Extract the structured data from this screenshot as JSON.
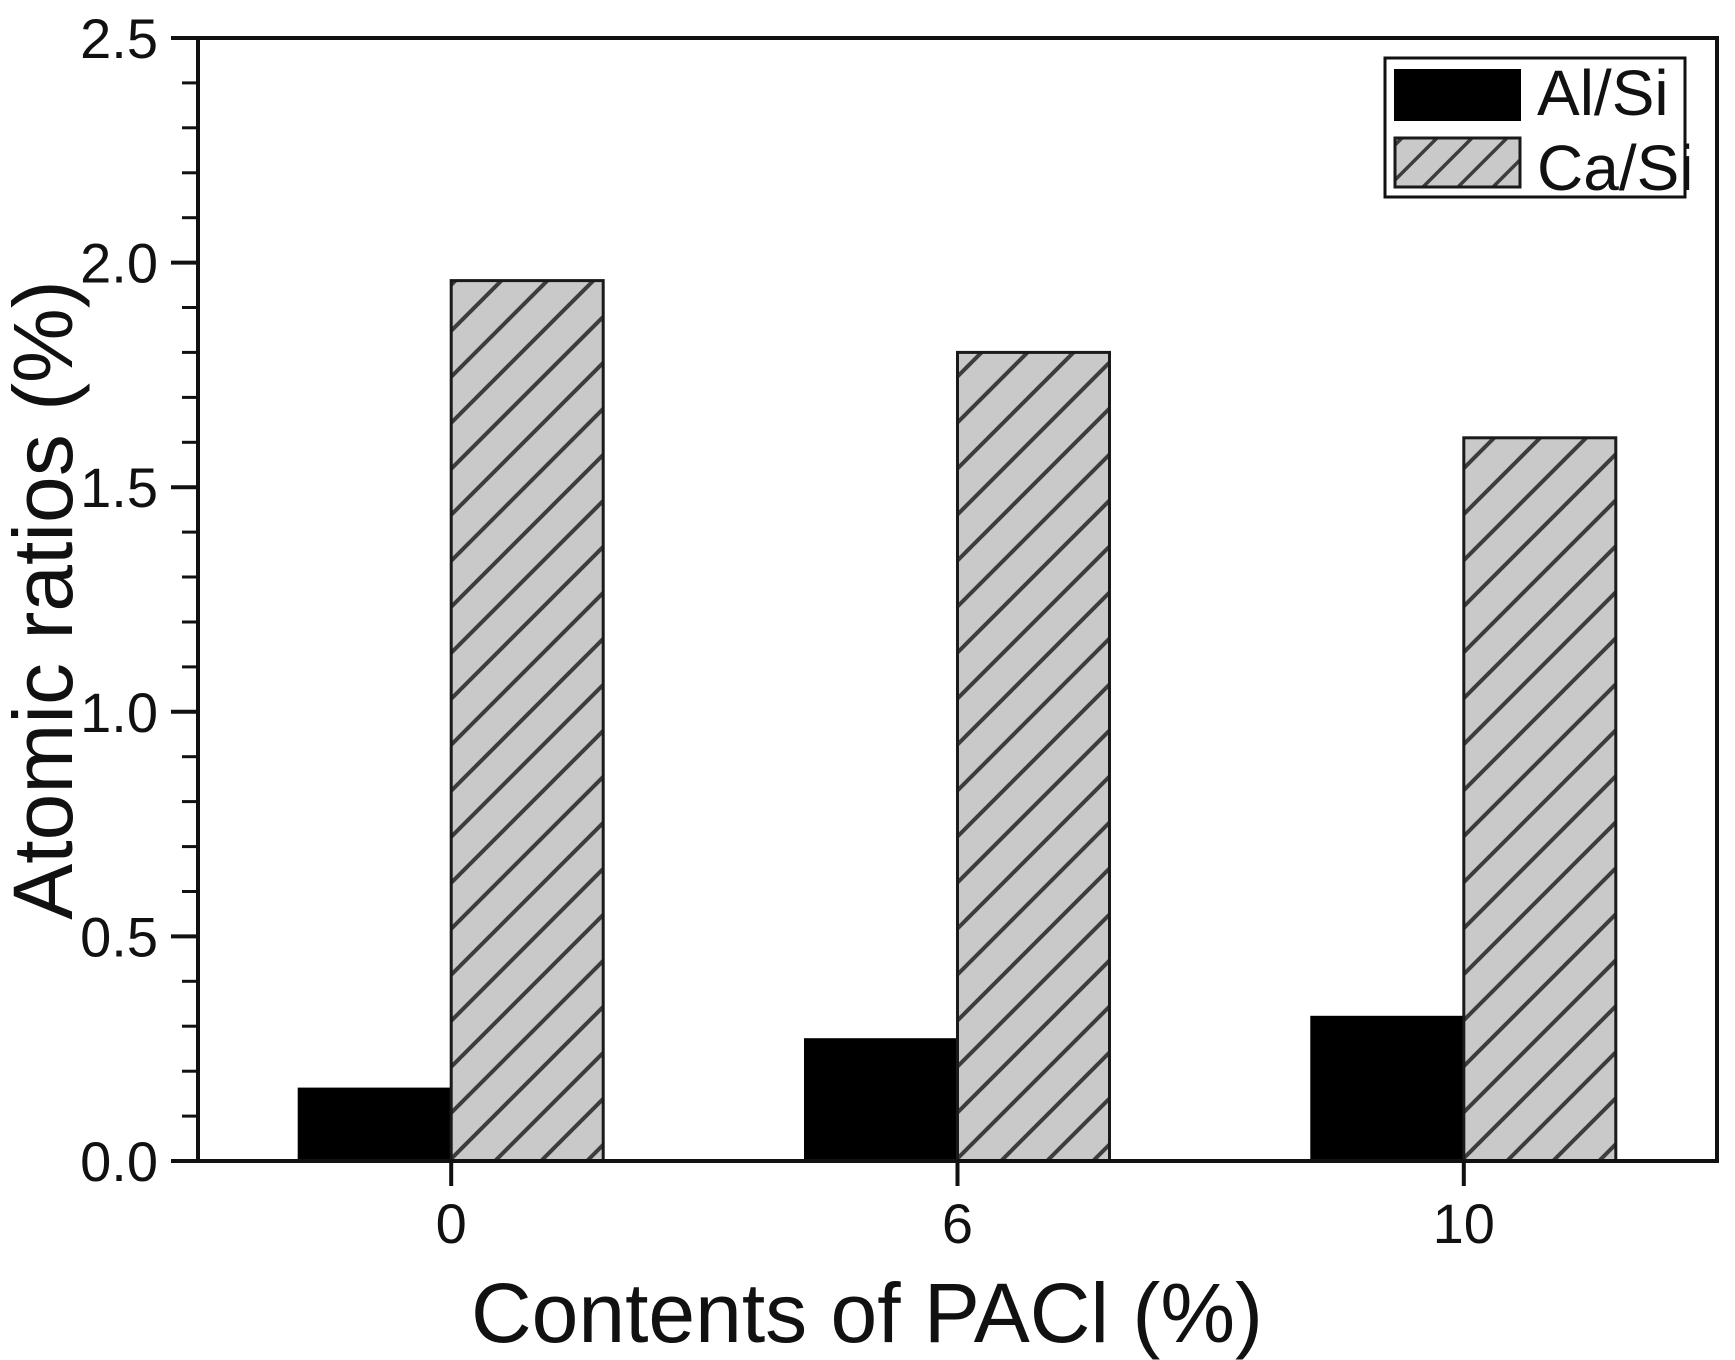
{
  "chart_data": {
    "type": "bar",
    "title": "",
    "xlabel": "Contents of PACl (%)",
    "ylabel": "Atomic ratios (%)",
    "categories": [
      "0",
      "6",
      "10"
    ],
    "series": [
      {
        "name": "Al/Si",
        "values": [
          0.16,
          0.27,
          0.32
        ],
        "style": "solid-black"
      },
      {
        "name": "Ca/Si",
        "values": [
          1.96,
          1.8,
          1.61
        ],
        "style": "gray-diagonal-hatch"
      }
    ],
    "ylim": [
      0.0,
      2.5
    ],
    "y_major_tick_step": 0.5,
    "y_minor_tick_step": 0.1,
    "y_tick_labels": [
      "0.0",
      "0.5",
      "1.0",
      "1.5",
      "2.0",
      "2.5"
    ],
    "grid": false,
    "legend_position": "top-right",
    "colors": {
      "background": "#ffffff",
      "bar_solid": "#000000",
      "hatch_fill": "#c9c9c9",
      "hatch_line": "#3d3d3d",
      "axis_and_text": "#111111"
    }
  }
}
